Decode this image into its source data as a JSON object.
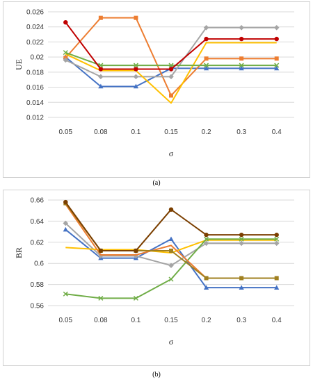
{
  "chart_data": [
    {
      "type": "line",
      "panel": "a",
      "caption": "(a)",
      "ylabel": "UE",
      "xlabel": "σ",
      "categories": [
        "0.05",
        "0.08",
        "0.1",
        "0.15",
        "0.2",
        "0.3",
        "0.4"
      ],
      "ylim": [
        0.012,
        0.026
      ],
      "yticks": [
        "0.012",
        "0.014",
        "0.016",
        "0.018",
        "0.02",
        "0.022",
        "0.024",
        "0.026"
      ],
      "grid": true,
      "series": [
        {
          "color": "#4472C4",
          "marker": "triangle",
          "values": [
            0.02,
            0.0161,
            0.0161,
            0.0185,
            0.0185,
            0.0185,
            0.0185
          ]
        },
        {
          "color": "#ED7D31",
          "marker": "square",
          "values": [
            0.0199,
            0.0252,
            0.0252,
            0.0149,
            0.0198,
            0.0198,
            0.0198
          ]
        },
        {
          "color": "#A5A5A5",
          "marker": "diamond",
          "values": [
            0.0196,
            0.0174,
            0.0174,
            0.0174,
            0.0239,
            0.0239,
            0.0239
          ]
        },
        {
          "color": "#FFC000",
          "marker": "none",
          "values": [
            0.0204,
            0.0182,
            0.0182,
            0.0139,
            0.0219,
            0.0219,
            0.0219
          ]
        },
        {
          "color": "#70AD47",
          "marker": "x",
          "values": [
            0.0206,
            0.0189,
            0.0189,
            0.0189,
            0.0189,
            0.0189,
            0.0189
          ]
        },
        {
          "color": "#C00000",
          "marker": "circle",
          "values": [
            0.0246,
            0.0184,
            0.0184,
            0.0184,
            0.0224,
            0.0224,
            0.0224
          ]
        }
      ]
    },
    {
      "type": "line",
      "panel": "b",
      "caption": "(b)",
      "ylabel": "BR",
      "xlabel": "σ",
      "categories": [
        "0.05",
        "0.08",
        "0.1",
        "0.15",
        "0.2",
        "0.3",
        "0.4"
      ],
      "ylim": [
        0.56,
        0.66
      ],
      "yticks": [
        "0.56",
        "0.58",
        "0.6",
        "0.62",
        "0.64",
        "0.66"
      ],
      "grid": true,
      "series": [
        {
          "color": "#4472C4",
          "marker": "triangle",
          "values": [
            0.632,
            0.605,
            0.605,
            0.623,
            0.577,
            0.577,
            0.577
          ]
        },
        {
          "color": "#A5A5A5",
          "marker": "diamond",
          "values": [
            0.638,
            0.607,
            0.607,
            0.598,
            0.619,
            0.619,
            0.619
          ]
        },
        {
          "color": "#FFC000",
          "marker": "none",
          "values": [
            0.615,
            0.613,
            0.613,
            0.61,
            0.622,
            0.622,
            0.622
          ]
        },
        {
          "color": "#70AD47",
          "marker": "x",
          "values": [
            0.571,
            0.567,
            0.567,
            0.585,
            0.623,
            0.623,
            0.623
          ]
        },
        {
          "color": "#ED7D31",
          "marker": "none",
          "values": [
            0.656,
            0.608,
            0.608,
            0.617,
            0.586,
            0.586,
            0.586
          ]
        },
        {
          "color": "#A08020",
          "marker": "square",
          "values": [
            0.657,
            0.612,
            0.612,
            0.612,
            0.586,
            0.586,
            0.586
          ]
        },
        {
          "color": "#7B3F00",
          "marker": "circle",
          "values": [
            0.658,
            0.612,
            0.612,
            0.651,
            0.627,
            0.627,
            0.627
          ]
        }
      ]
    }
  ]
}
